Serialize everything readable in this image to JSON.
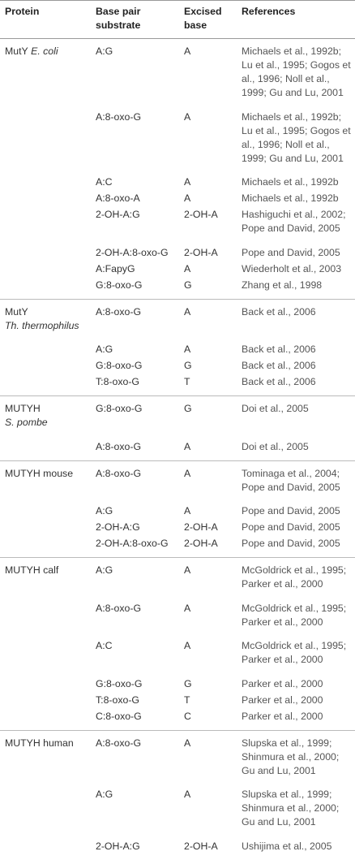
{
  "header": {
    "protein": "Protein",
    "substrate": "Base pair substrate",
    "excised": "Excised base",
    "references": "References"
  },
  "groups": [
    {
      "protein": "MutY",
      "species": "E. coli",
      "rows": [
        {
          "substrate": "A:G",
          "base": "A",
          "refs": "Michaels et al., 1992b; Lu et al., 1995; Gogos et al., 1996; Noll et al., 1999; Gu and Lu, 2001"
        },
        {
          "substrate": "A:8-oxo-G",
          "base": "A",
          "refs": "Michaels et al., 1992b; Lu et al., 1995; Gogos et al., 1996; Noll et al., 1999; Gu and Lu, 2001"
        },
        {
          "substrate": "A:C",
          "base": "A",
          "refs": "Michaels et al., 1992b"
        },
        {
          "substrate": "A:8-oxo-A",
          "base": "A",
          "refs": "Michaels et al., 1992b"
        },
        {
          "substrate": "2-OH-A:G",
          "base": "2-OH-A",
          "refs": "Hashiguchi et al., 2002; Pope and David, 2005"
        },
        {
          "substrate": "2-OH-A:8-oxo-G",
          "base": "2-OH-A",
          "refs": "Pope and David, 2005"
        },
        {
          "substrate": "A:FapyG",
          "base": "A",
          "refs": "Wiederholt et al., 2003"
        },
        {
          "substrate": "G:8-oxo-G",
          "base": "G",
          "refs": "Zhang et al., 1998"
        }
      ]
    },
    {
      "protein": "MutY",
      "species": "Th. thermophilus",
      "species_new_line": true,
      "rows": [
        {
          "substrate": "A:8-oxo-G",
          "base": "A",
          "refs": "Back et al., 2006"
        },
        {
          "substrate": "A:G",
          "base": "A",
          "refs": "Back et al., 2006"
        },
        {
          "substrate": "G:8-oxo-G",
          "base": "G",
          "refs": "Back et al., 2006"
        },
        {
          "substrate": "T:8-oxo-G",
          "base": "T",
          "refs": "Back et al., 2006"
        }
      ]
    },
    {
      "protein": "MUTYH",
      "species": "S. pombe",
      "species_new_line": true,
      "rows": [
        {
          "substrate": "G:8-oxo-G",
          "base": "G",
          "refs": "Doi et al., 2005"
        },
        {
          "substrate": "A:8-oxo-G",
          "base": "A",
          "refs": "Doi et al., 2005"
        }
      ]
    },
    {
      "protein": "MUTYH mouse",
      "rows": [
        {
          "substrate": "A:8-oxo-G",
          "base": "A",
          "refs": "Tominaga et al., 2004; Pope and David, 2005"
        },
        {
          "substrate": "A:G",
          "base": "A",
          "refs": "Pope and David, 2005"
        },
        {
          "substrate": "2-OH-A:G",
          "base": "2-OH-A",
          "refs": "Pope and David, 2005"
        },
        {
          "substrate": "2-OH-A:8-oxo-G",
          "base": "2-OH-A",
          "refs": "Pope and David, 2005"
        }
      ]
    },
    {
      "protein": "MUTYH calf",
      "rows": [
        {
          "substrate": "A:G",
          "base": "A",
          "refs": "McGoldrick et al., 1995; Parker et al., 2000"
        },
        {
          "substrate": "A:8-oxo-G",
          "base": "A",
          "refs": "McGoldrick et al., 1995; Parker et al., 2000"
        },
        {
          "substrate": "A:C",
          "base": "A",
          "refs": "McGoldrick et al., 1995; Parker et al., 2000"
        },
        {
          "substrate": "G:8-oxo-G",
          "base": "G",
          "refs": "Parker et al., 2000"
        },
        {
          "substrate": "T:8-oxo-G",
          "base": "T",
          "refs": "Parker et al., 2000"
        },
        {
          "substrate": "C:8-oxo-G",
          "base": "C",
          "refs": "Parker et al., 2000"
        }
      ]
    },
    {
      "protein": "MUTYH human",
      "rows": [
        {
          "substrate": "A:8-oxo-G",
          "base": "A",
          "refs": "Slupska et al., 1999; Shinmura et al., 2000; Gu and Lu, 2001"
        },
        {
          "substrate": "A:G",
          "base": "A",
          "refs": "Slupska et al., 1999; Shinmura et al., 2000; Gu and Lu, 2001"
        },
        {
          "substrate": "2-OH-A:G",
          "base": "2-OH-A",
          "refs": "Ushijima et al., 2005"
        }
      ]
    }
  ]
}
